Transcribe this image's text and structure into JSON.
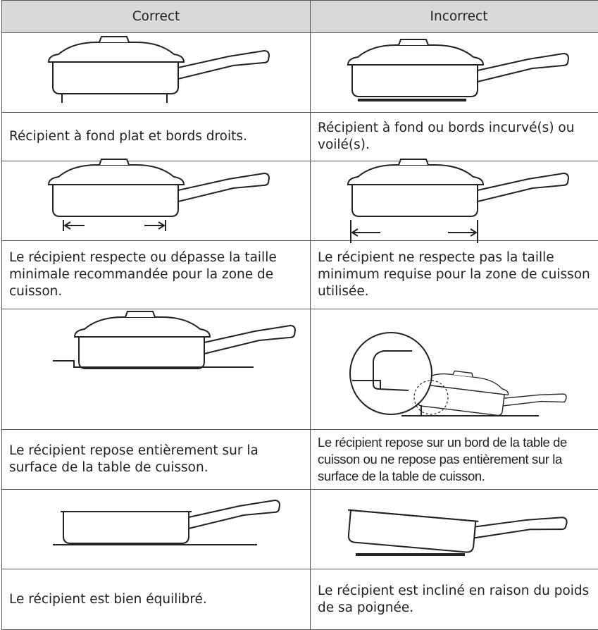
{
  "header": {
    "columns": [
      "Correct",
      "Incorrect"
    ]
  },
  "rows": [
    {
      "correct": "Récipient à fond plat et bords droits.",
      "incorrect": "Récipient à fond ou bords incurvé(s) ou voilé(s)."
    },
    {
      "correct": "Le récipient respecte ou dépasse la taille minimale recommandée pour la zone de cuisson.",
      "incorrect": "Le récipient ne respecte pas la taille minimum requise pour la zone de cuisson utilisée."
    },
    {
      "correct": "Le récipient repose entièrement sur la surface de la table de cuisson.",
      "incorrect": "Le récipient repose sur un bord de la table de cuisson ou ne repose pas entièrement sur la surface de la table de cuisson."
    },
    {
      "correct": "Le récipient est bien équilibré.",
      "incorrect": "Le récipient est incliné en raison du poids de sa poignée."
    }
  ]
}
